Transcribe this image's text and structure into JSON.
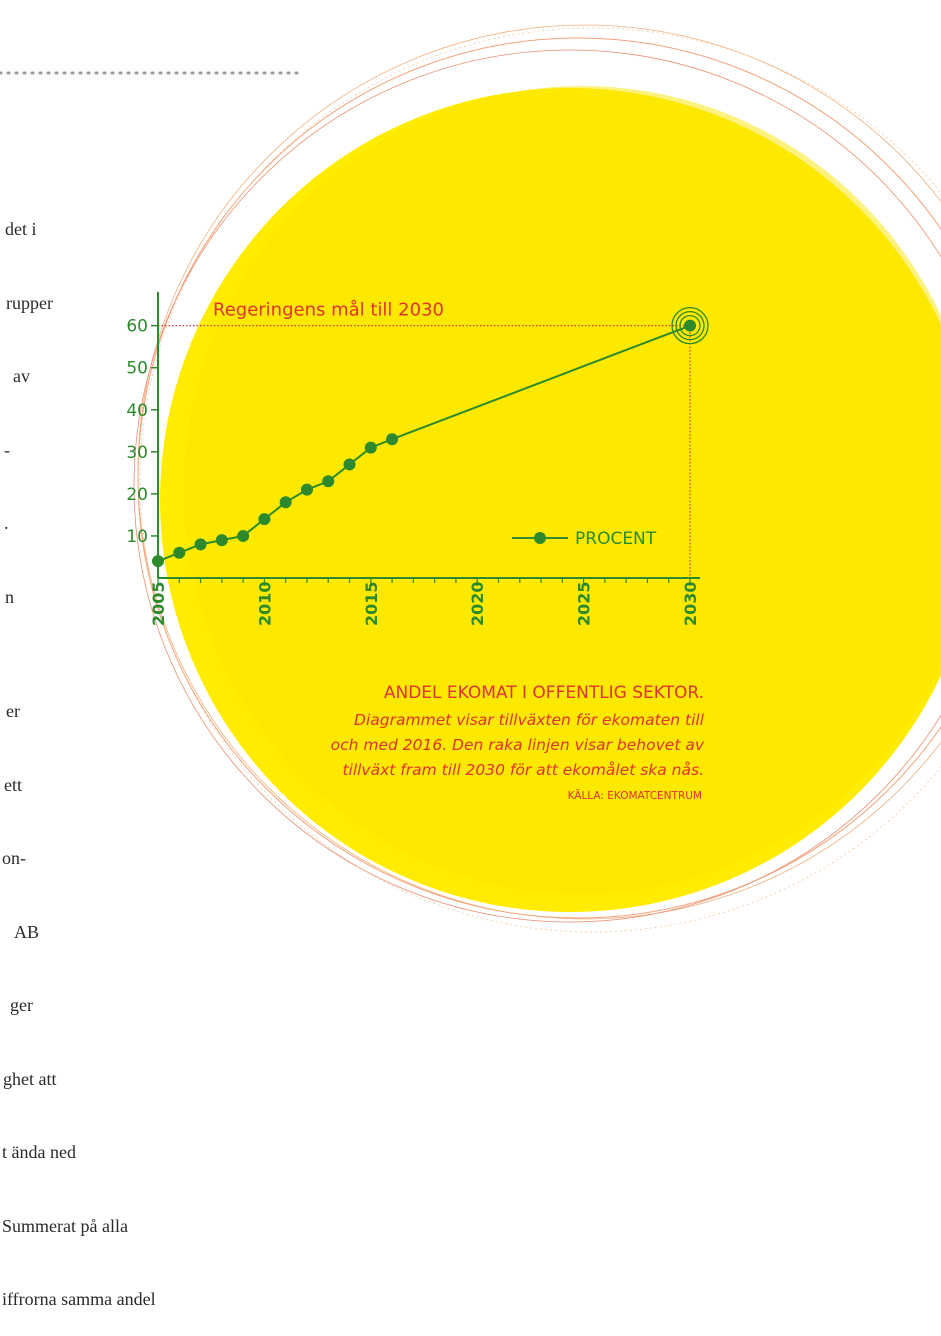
{
  "article": {
    "top_lines": [
      "det i",
      "rupper",
      "av",
      "-",
      ".",
      "n"
    ],
    "bottom_lines": [
      "er",
      "ett",
      "on-",
      "AB",
      "ger",
      "ghet att",
      "t ända ned",
      "Summerat på alla",
      "iffrorna samma andel"
    ]
  },
  "colors": {
    "circle_fill": "#ffec00",
    "line_green": "#2c8a2c",
    "accent_red": "#e0332f",
    "dotted_rule": "#9a9a9a"
  },
  "chart_data": {
    "type": "line",
    "goal_label": "Regeringens mål till 2030",
    "legend_label": "PROCENT",
    "legend_placement": "bottom-right",
    "grid": false,
    "xlim": [
      2005,
      2030
    ],
    "ylim": [
      0,
      68
    ],
    "yticks": [
      10,
      20,
      30,
      40,
      50,
      60
    ],
    "xticks": [
      2005,
      2010,
      2015,
      2020,
      2025,
      2030
    ],
    "series": [
      {
        "name": "PROCENT",
        "points": [
          {
            "x": 2005,
            "y": 4
          },
          {
            "x": 2006,
            "y": 6
          },
          {
            "x": 2007,
            "y": 8
          },
          {
            "x": 2008,
            "y": 9
          },
          {
            "x": 2009,
            "y": 10
          },
          {
            "x": 2010,
            "y": 14
          },
          {
            "x": 2011,
            "y": 18
          },
          {
            "x": 2012,
            "y": 21
          },
          {
            "x": 2013,
            "y": 23
          },
          {
            "x": 2014,
            "y": 27
          },
          {
            "x": 2015,
            "y": 31
          },
          {
            "x": 2016,
            "y": 33
          },
          {
            "x": 2030,
            "y": 60
          }
        ]
      }
    ],
    "caption": {
      "title": "ANDEL EKOMAT I OFFENTLIG SEKTOR.",
      "lines": [
        "Diagrammet visar tillväxten för ekomaten till",
        "och med 2016. Den raka linjen visar behovet av",
        "tillväxt fram till 2030 för att ekomålet ska nås."
      ],
      "source": "KÄLLA: EKOMATCENTRUM"
    }
  }
}
